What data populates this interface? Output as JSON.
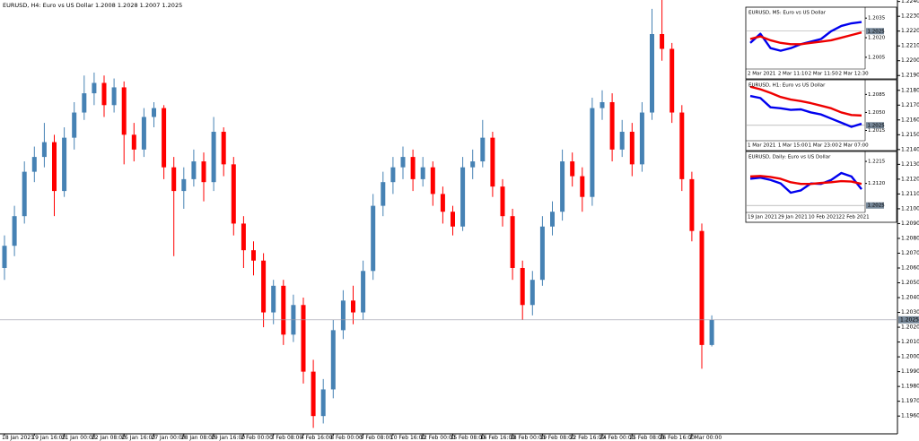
{
  "chart_data": [
    {
      "type": "candlestick",
      "title": "EURUSD, H4:  Euro vs US Dollar  1.2008 1.2028 1.2007 1.2025",
      "categories": [
        "18 Jan 2021",
        null,
        null,
        "19 Jan 16:00",
        null,
        null,
        "21 Jan 00:00",
        null,
        null,
        "22 Jan 08:00",
        null,
        null,
        "25 Jan 16:00",
        null,
        null,
        "27 Jan 00:00",
        null,
        null,
        "28 Jan 08:00",
        null,
        null,
        "29 Jan 16:00",
        null,
        null,
        "2 Feb 00:00",
        null,
        null,
        "3 Feb 08:00",
        null,
        null,
        "4 Feb 16:00",
        null,
        null,
        "8 Feb 00:00",
        null,
        null,
        "9 Feb 08:00",
        null,
        null,
        "10 Feb 16:00",
        null,
        null,
        "12 Feb 00:00",
        null,
        null,
        "15 Feb 08:00",
        null,
        null,
        "16 Feb 16:00",
        null,
        null,
        "18 Feb 00:00",
        null,
        null,
        "19 Feb 08:00",
        null,
        null,
        "22 Feb 16:00",
        null,
        null,
        "24 Feb 00:00",
        null,
        null,
        "25 Feb 08:00",
        null,
        null,
        "26 Feb 16:00",
        null,
        null,
        "2 Mar 00:00",
        null,
        null
      ],
      "open": [
        1.206,
        1.2075,
        1.2095,
        1.2125,
        1.2135,
        1.2145,
        1.2112,
        1.2148,
        1.2165,
        1.2178,
        1.2185,
        1.217,
        1.2182,
        1.215,
        1.214,
        1.2162,
        1.2168,
        1.2128,
        1.2112,
        1.212,
        1.2132,
        1.2118,
        1.2152,
        1.213,
        1.209,
        1.2072,
        1.2065,
        1.203,
        1.2048,
        1.2015,
        1.2035,
        1.199,
        1.196,
        1.1978,
        1.2018,
        1.2038,
        1.203,
        1.2058,
        1.2102,
        1.2118,
        1.2128,
        1.2135,
        1.212,
        1.2128,
        1.211,
        1.2098,
        1.2088,
        1.2128,
        1.2132,
        1.2148,
        1.2115,
        1.2095,
        1.206,
        1.2035,
        1.2052,
        1.2088,
        1.2098,
        1.2132,
        1.2122,
        1.2108,
        1.2168,
        1.2172,
        1.214,
        1.2152,
        1.213,
        1.2165,
        1.2218,
        1.2208,
        1.2165,
        1.212,
        1.2085,
        1.2008
      ],
      "high": [
        1.2082,
        1.2102,
        1.2132,
        1.2142,
        1.2158,
        1.215,
        1.2155,
        1.2172,
        1.219,
        1.2192,
        1.219,
        1.2188,
        1.2186,
        1.2158,
        1.2168,
        1.2172,
        1.217,
        1.2135,
        1.2128,
        1.214,
        1.2138,
        1.2162,
        1.2155,
        1.2135,
        1.2095,
        1.2078,
        1.207,
        1.2052,
        1.2052,
        1.2042,
        1.204,
        1.1998,
        1.1985,
        1.2025,
        1.2045,
        1.2048,
        1.2065,
        1.211,
        1.2125,
        1.2135,
        1.2142,
        1.214,
        1.2135,
        1.2132,
        1.2115,
        1.2102,
        1.2135,
        1.214,
        1.216,
        1.2152,
        1.212,
        1.21,
        1.2065,
        1.2058,
        1.2095,
        1.2105,
        1.214,
        1.2138,
        1.2128,
        1.2175,
        1.218,
        1.2178,
        1.216,
        1.2158,
        1.2172,
        1.2235,
        1.2242,
        1.2212,
        1.217,
        1.2125,
        1.209,
        1.2028
      ],
      "low": [
        1.2052,
        1.2068,
        1.209,
        1.2118,
        1.2128,
        1.2095,
        1.2108,
        1.214,
        1.216,
        1.217,
        1.2162,
        1.2165,
        1.213,
        1.2132,
        1.2135,
        1.2155,
        1.212,
        1.2068,
        1.21,
        1.2115,
        1.2105,
        1.2112,
        1.2122,
        1.2082,
        1.206,
        1.2055,
        1.202,
        1.2022,
        1.2008,
        1.201,
        1.1982,
        1.1952,
        1.1955,
        1.1972,
        1.2012,
        1.2022,
        1.2025,
        1.2052,
        1.2095,
        1.211,
        1.212,
        1.2112,
        1.2115,
        1.2102,
        1.209,
        1.2082,
        1.2085,
        1.212,
        1.2128,
        1.2108,
        1.2088,
        1.2052,
        1.2025,
        1.2028,
        1.2048,
        1.2082,
        1.2092,
        1.2115,
        1.2098,
        1.2102,
        1.216,
        1.2132,
        1.2135,
        1.2122,
        1.2125,
        1.216,
        1.22,
        1.2158,
        1.2112,
        1.2078,
        1.1992,
        1.2007
      ],
      "close": [
        1.2075,
        1.2095,
        1.2125,
        1.2135,
        1.2145,
        1.2112,
        1.2148,
        1.2165,
        1.2178,
        1.2185,
        1.217,
        1.2182,
        1.215,
        1.214,
        1.2162,
        1.2168,
        1.2128,
        1.2112,
        1.212,
        1.2132,
        1.2118,
        1.2152,
        1.213,
        1.209,
        1.2072,
        1.2065,
        1.203,
        1.2048,
        1.2015,
        1.2035,
        1.199,
        1.196,
        1.1978,
        1.2018,
        1.2038,
        1.203,
        1.2058,
        1.2102,
        1.2118,
        1.2128,
        1.2135,
        1.212,
        1.2128,
        1.211,
        1.2098,
        1.2088,
        1.2128,
        1.2132,
        1.2148,
        1.2115,
        1.2095,
        1.206,
        1.2035,
        1.2052,
        1.2088,
        1.2098,
        1.2132,
        1.2122,
        1.2108,
        1.2168,
        1.2172,
        1.214,
        1.2152,
        1.213,
        1.2165,
        1.2218,
        1.2208,
        1.2165,
        1.212,
        1.2085,
        1.2008,
        1.2025
      ],
      "up_color": "#4682b4",
      "down_color": "#ff0000",
      "ylim": [
        1.1948,
        1.2241
      ],
      "yticks": [
        {
          "value": 1.196,
          "label": "1.1960"
        },
        {
          "value": 1.197,
          "label": "1.1970"
        },
        {
          "value": 1.198,
          "label": "1.1980"
        },
        {
          "value": 1.199,
          "label": "1.1990"
        },
        {
          "value": 1.2,
          "label": "1.2000"
        },
        {
          "value": 1.201,
          "label": "1.2010"
        },
        {
          "value": 1.202,
          "label": "1.2020"
        },
        {
          "value": 1.203,
          "label": "1.2030"
        },
        {
          "value": 1.204,
          "label": "1.2040"
        },
        {
          "value": 1.205,
          "label": "1.2050"
        },
        {
          "value": 1.206,
          "label": "1.2060"
        },
        {
          "value": 1.207,
          "label": "1.2070"
        },
        {
          "value": 1.208,
          "label": "1.2080"
        },
        {
          "value": 1.209,
          "label": "1.2090"
        },
        {
          "value": 1.21,
          "label": "1.2100"
        },
        {
          "value": 1.211,
          "label": "1.2110"
        },
        {
          "value": 1.212,
          "label": "1.2120"
        },
        {
          "value": 1.213,
          "label": "1.2130"
        },
        {
          "value": 1.214,
          "label": "1.2140"
        },
        {
          "value": 1.215,
          "label": "1.2150"
        },
        {
          "value": 1.216,
          "label": "1.2160"
        },
        {
          "value": 1.217,
          "label": "1.2170"
        },
        {
          "value": 1.218,
          "label": "1.2180"
        },
        {
          "value": 1.219,
          "label": "1.2190"
        },
        {
          "value": 1.22,
          "label": "1.2200"
        },
        {
          "value": 1.221,
          "label": "1.2210"
        },
        {
          "value": 1.222,
          "label": "1.2220"
        },
        {
          "value": 1.223,
          "label": "1.2230"
        },
        {
          "value": 1.224,
          "label": "1.2240"
        }
      ],
      "last_price": 1.2025
    },
    {
      "type": "line",
      "title": "EURUSD, M5:  Euro vs US Dollar",
      "categories": [
        "2 Mar 2021",
        null,
        null,
        "2 Mar 11:10",
        null,
        null,
        "2 Mar 11:50",
        null,
        null,
        "2 Mar 12:30",
        null,
        null
      ],
      "series": [
        {
          "color": "#0000ee",
          "values": [
            1.2016,
            1.2023,
            1.2012,
            1.201,
            1.2012,
            1.2015,
            1.2017,
            1.2019,
            1.2025,
            1.2029,
            1.2031,
            1.2032
          ]
        },
        {
          "color": "#ee0000",
          "values": [
            1.2019,
            1.2021,
            1.2018,
            1.2016,
            1.2015,
            1.2015,
            1.2016,
            1.2017,
            1.2018,
            1.202,
            1.2022,
            1.2024
          ]
        }
      ],
      "ylim": [
        1.1996,
        1.2042
      ],
      "yticks": [
        1.2035,
        {
          "value": 1.202,
          "label": "1.2020"
        },
        1.2005
      ],
      "last_price": 1.2025
    },
    {
      "type": "line",
      "title": "EURUSD, H1:  Euro vs US Dollar",
      "categories": [
        "1 Mar 2021",
        null,
        null,
        "1 Mar 15:00",
        null,
        null,
        "1 Mar 23:00",
        null,
        null,
        "2 Mar 07:00",
        null,
        null
      ],
      "series": [
        {
          "color": "#0000ee",
          "values": [
            1.2082,
            1.2078,
            1.206,
            1.2058,
            1.2055,
            1.2056,
            1.205,
            1.2046,
            1.2038,
            1.203,
            1.2022,
            1.2028
          ]
        },
        {
          "color": "#ee0000",
          "values": [
            1.21,
            1.2095,
            1.2088,
            1.208,
            1.2075,
            1.2072,
            1.2068,
            1.2063,
            1.2058,
            1.205,
            1.2045,
            1.2044
          ]
        }
      ],
      "ylim": [
        1.1995,
        1.211
      ],
      "yticks": [
        1.2085,
        {
          "value": 1.205,
          "label": "1.2050"
        },
        1.2015
      ],
      "last_price": 1.2025
    },
    {
      "type": "line",
      "title": "EURUSD, Daily:  Euro vs US Dollar",
      "categories": [
        "19 Jan 2021",
        null,
        null,
        "29 Jan 2021",
        null,
        null,
        "10 Feb 2021",
        null,
        null,
        "22 Feb 2021",
        null,
        null
      ],
      "series": [
        {
          "color": "#0000ee",
          "values": [
            1.214,
            1.2145,
            1.2135,
            1.212,
            1.208,
            1.209,
            1.212,
            1.2118,
            1.2135,
            1.2165,
            1.215,
            1.2095
          ]
        },
        {
          "color": "#ee0000",
          "values": [
            1.215,
            1.2152,
            1.2148,
            1.214,
            1.2125,
            1.2118,
            1.2118,
            1.2122,
            1.2125,
            1.213,
            1.2128,
            1.2118
          ]
        }
      ],
      "ylim": [
        1.1995,
        1.225
      ],
      "yticks": [
        1.2215,
        {
          "value": 1.212,
          "label": "1.2120"
        }
      ],
      "last_price": 1.2025
    }
  ]
}
